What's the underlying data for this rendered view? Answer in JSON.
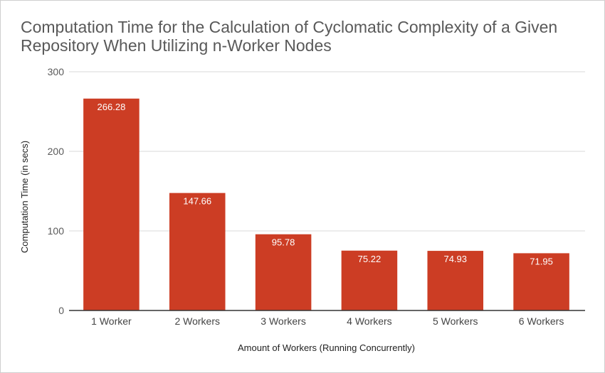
{
  "chart_data": {
    "type": "bar",
    "title": "Computation Time for the Calculation of Cyclomatic Complexity of a Given Repository When Utilizing n-Worker Nodes",
    "xlabel": "Amount of Workers (Running Concurrently)",
    "ylabel": "Computation Time (in secs)",
    "categories": [
      "1 Worker",
      "2 Workers",
      "3 Workers",
      "4 Workers",
      "5 Workers",
      "6 Workers"
    ],
    "values": [
      266.28,
      147.66,
      95.78,
      75.22,
      74.93,
      71.95
    ],
    "data_labels": [
      "266.28",
      "147.66",
      "95.78",
      "75.22",
      "74.93",
      "71.95"
    ],
    "ylim": [
      0,
      300
    ],
    "yticks": [
      0,
      100,
      200,
      300
    ],
    "grid": true,
    "legend": "none",
    "bar_color": "#cc3d24",
    "gridline_color": "#d9d9d9",
    "baseline_color": "#333333"
  }
}
